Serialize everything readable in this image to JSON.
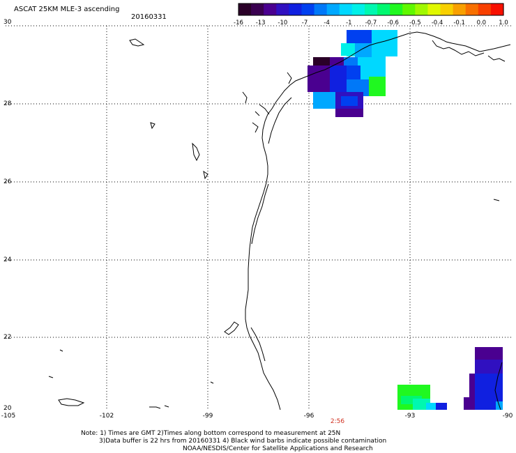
{
  "header": {
    "title": "ASCAT 25KM MLE-3 ascending",
    "date": "20160331"
  },
  "colorbar": {
    "labels": [
      "-16",
      "-13",
      "-10",
      "-7",
      "-4",
      "-1",
      "-0.7",
      "-0.6",
      "-0.5",
      "-0.4",
      "-0.1",
      "0.0",
      "1.0"
    ],
    "colors": [
      "#2a0028",
      "#3a0050",
      "#4a0090",
      "#3010c0",
      "#1020e0",
      "#0040f0",
      "#0078f8",
      "#00a8ff",
      "#00d8ff",
      "#00f0e8",
      "#00f8b0",
      "#00f870",
      "#20f820",
      "#60f800",
      "#a0f800",
      "#e0f800",
      "#f8d000",
      "#f8a000",
      "#f87000",
      "#f84000",
      "#f81000"
    ]
  },
  "axes": {
    "lat_labels": [
      "30",
      "28",
      "26",
      "24",
      "22",
      "20"
    ],
    "lon_labels": [
      "-105",
      "-102",
      "-99",
      "-96",
      "-93",
      "-90"
    ]
  },
  "time_label": "2:56",
  "notes": {
    "line1": "Note: 1) Times are GMT 2)Times along bottom correspond to measurement at 25N",
    "line2": "3)Data buffer is 22 hrs from 20160331 4) Black wind barbs indicate possible contamination",
    "line3": "NOAA/NESDIS/Center for Satellite Applications and Research"
  },
  "colors": {
    "grid": "#000000",
    "coast": "#000000",
    "time_label": "#d03020"
  }
}
